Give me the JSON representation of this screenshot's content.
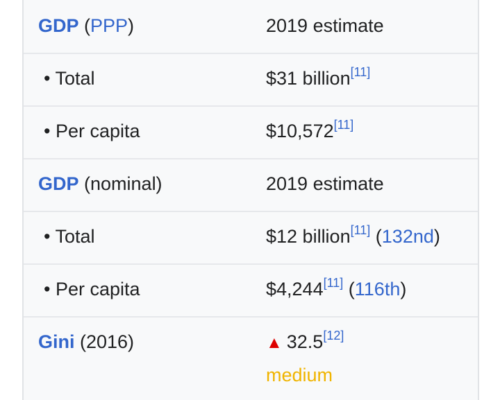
{
  "rows": [
    {
      "label_link": "GDP",
      "label_paren_open": " (",
      "label_paren_link": "PPP",
      "label_paren_close": ")",
      "value": "2019 estimate"
    },
    {
      "label": "• Total",
      "value": "$31 billion",
      "ref": "[11]"
    },
    {
      "label": "• Per capita",
      "value": "$10,572",
      "ref": "[11]"
    },
    {
      "label_link": "GDP",
      "label_rest": " (nominal)",
      "value": "2019 estimate"
    },
    {
      "label": "• Total",
      "value": "$12 billion",
      "ref": "[11]",
      "rank_open": " (",
      "rank": "132nd",
      "rank_close": ")"
    },
    {
      "label": "• Per capita",
      "value": "$4,244",
      "ref": "[11]",
      "rank_open": " (",
      "rank": "116th",
      "rank_close": ")"
    },
    {
      "label_link": "Gini",
      "label_rest": " (2016)",
      "trend_icon": "▲",
      "value": "32.5",
      "ref": "[12]",
      "category": "medium"
    }
  ],
  "colors": {
    "link": "#3366cc",
    "increase": "#dd0000",
    "medium": "#f0b400"
  }
}
